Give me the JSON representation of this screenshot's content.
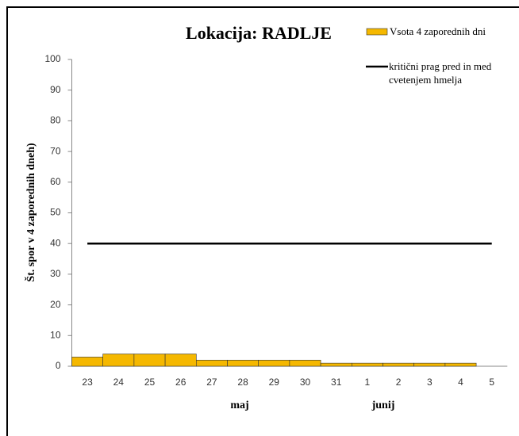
{
  "chart_data": {
    "type": "bar",
    "title": "Lokacija: RADLJE",
    "y_label": "Št. spor v 4 zaporednih dneh)",
    "categories": [
      "23",
      "24",
      "25",
      "26",
      "27",
      "28",
      "29",
      "30",
      "31",
      "1",
      "2",
      "3",
      "4",
      "5"
    ],
    "groups": [
      "maj",
      "junij"
    ],
    "series": [
      {
        "name": "Vsota 4 zaporednih dni",
        "type": "bar",
        "color": "#f5b800",
        "values": [
          3,
          4,
          4,
          4,
          2,
          2,
          2,
          2,
          1,
          1,
          1,
          1,
          1,
          null
        ]
      },
      {
        "name": "kritični prag pred in med cvetenjem hmelja",
        "type": "line",
        "color": "#000000",
        "values": [
          40,
          40,
          40,
          40,
          40,
          40,
          40,
          40,
          40,
          40,
          40,
          40,
          40,
          40
        ]
      }
    ],
    "ylim": [
      0,
      100
    ],
    "yticks": [
      0,
      10,
      20,
      30,
      40,
      50,
      60,
      70,
      80,
      90,
      100
    ],
    "grid": false
  }
}
